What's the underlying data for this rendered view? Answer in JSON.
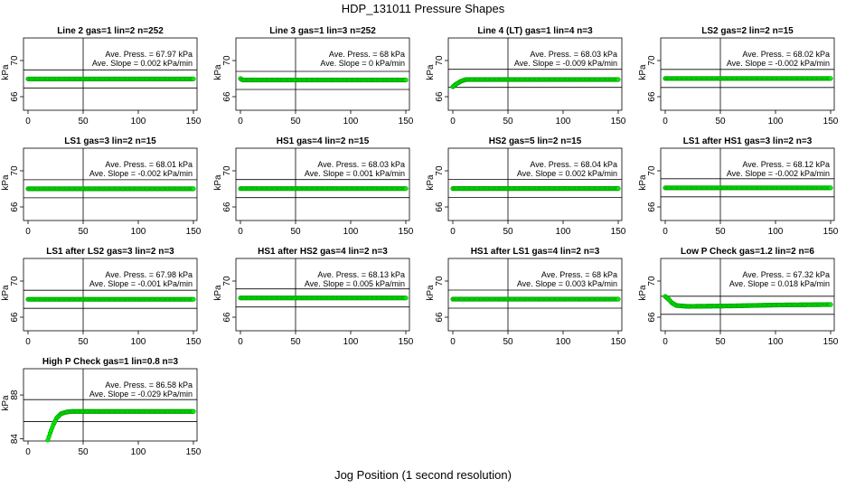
{
  "title": "HDP_131011  Pressure Shapes",
  "xlabel": "Jog Position (1 second resolution)",
  "colors": {
    "points": "#00ee00",
    "point_edge": "#009900",
    "lines": "#000000"
  },
  "chart_data": [
    {
      "type": "scatter",
      "title": "Line 2 gas=1 lin=2 n=252",
      "ylabel": "kPa",
      "x_ticks": [
        "0",
        "50",
        "100",
        "150"
      ],
      "y_ticks": [
        "66",
        "70"
      ],
      "xlim": [
        0,
        150
      ],
      "ylim": [
        64.5,
        72.5
      ],
      "vline": 50,
      "hlines": [
        66.97,
        68.97
      ],
      "stats": [
        "Ave. Press. = 67.97 kPa",
        "Ave. Slope = 0.002 kPa/min"
      ],
      "x": [
        0,
        150
      ],
      "y": [
        67.97,
        67.97
      ]
    },
    {
      "type": "scatter",
      "title": "Line 3 gas=1 lin=3 n=252",
      "ylabel": "kPa",
      "x_ticks": [
        "0",
        "50",
        "100",
        "150"
      ],
      "y_ticks": [
        "66",
        "70"
      ],
      "xlim": [
        0,
        150
      ],
      "ylim": [
        64.5,
        72.5
      ],
      "vline": 50,
      "hlines": [
        66.8,
        68.8
      ],
      "stats": [
        "Ave. Press. = 68 kPa",
        "Ave. Slope = 0 kPa/min"
      ],
      "x": [
        0,
        2,
        150
      ],
      "y": [
        68.0,
        67.85,
        67.85
      ]
    },
    {
      "type": "scatter",
      "title": "Line 4 (LT) gas=1 lin=4 n=3",
      "ylabel": "kPa",
      "x_ticks": [
        "0",
        "50",
        "100",
        "150"
      ],
      "y_ticks": [
        "66",
        "70"
      ],
      "xlim": [
        0,
        150
      ],
      "ylim": [
        64.5,
        72.5
      ],
      "vline": 50,
      "hlines": [
        67.03,
        69.03
      ],
      "stats": [
        "Ave. Press. = 68.03 kPa",
        "Ave. Slope = -0.009 kPa/min"
      ],
      "x": [
        0,
        3,
        8,
        12,
        150
      ],
      "y": [
        67.1,
        67.4,
        67.75,
        67.9,
        67.9
      ]
    },
    {
      "type": "scatter",
      "title": "LS2 gas=2 lin=2 n=15",
      "ylabel": "kPa",
      "x_ticks": [
        "0",
        "50",
        "100",
        "150"
      ],
      "y_ticks": [
        "66",
        "70"
      ],
      "xlim": [
        0,
        150
      ],
      "ylim": [
        64.5,
        72.5
      ],
      "vline": 50,
      "hlines": [
        67.02,
        69.02
      ],
      "stats": [
        "Ave. Press. = 68.02 kPa",
        "Ave. Slope = -0.002 kPa/min"
      ],
      "x": [
        0,
        150
      ],
      "y": [
        68.02,
        68.02
      ]
    },
    {
      "type": "scatter",
      "title": "LS1 gas=3 lin=2 n=15",
      "ylabel": "kPa",
      "x_ticks": [
        "0",
        "50",
        "100",
        "150"
      ],
      "y_ticks": [
        "66",
        "70"
      ],
      "xlim": [
        0,
        150
      ],
      "ylim": [
        64.5,
        72.5
      ],
      "vline": 50,
      "hlines": [
        67.01,
        69.01
      ],
      "stats": [
        "Ave. Press. = 68.01 kPa",
        "Ave. Slope = -0.002 kPa/min"
      ],
      "x": [
        0,
        150
      ],
      "y": [
        68.01,
        68.01
      ]
    },
    {
      "type": "scatter",
      "title": "HS1 gas=4 lin=2 n=15",
      "ylabel": "kPa",
      "x_ticks": [
        "0",
        "50",
        "100",
        "150"
      ],
      "y_ticks": [
        "66",
        "70"
      ],
      "xlim": [
        0,
        150
      ],
      "ylim": [
        64.5,
        72.5
      ],
      "vline": 50,
      "hlines": [
        67.03,
        69.03
      ],
      "stats": [
        "Ave. Press. = 68.03 kPa",
        "Ave. Slope = 0.001 kPa/min"
      ],
      "x": [
        0,
        150
      ],
      "y": [
        68.03,
        68.03
      ]
    },
    {
      "type": "scatter",
      "title": "HS2 gas=5 lin=2 n=15",
      "ylabel": "kPa",
      "x_ticks": [
        "0",
        "50",
        "100",
        "150"
      ],
      "y_ticks": [
        "66",
        "70"
      ],
      "xlim": [
        0,
        150
      ],
      "ylim": [
        64.5,
        72.5
      ],
      "vline": 50,
      "hlines": [
        67.04,
        69.04
      ],
      "stats": [
        "Ave. Press. = 68.04 kPa",
        "Ave. Slope = 0.002 kPa/min"
      ],
      "x": [
        0,
        150
      ],
      "y": [
        68.04,
        68.04
      ]
    },
    {
      "type": "scatter",
      "title": "LS1 after HS1 gas=3 lin=2 n=3",
      "ylabel": "kPa",
      "x_ticks": [
        "0",
        "50",
        "100",
        "150"
      ],
      "y_ticks": [
        "66",
        "70"
      ],
      "xlim": [
        0,
        150
      ],
      "ylim": [
        64.5,
        72.5
      ],
      "vline": 50,
      "hlines": [
        67.12,
        69.12
      ],
      "stats": [
        "Ave. Press. = 68.12 kPa",
        "Ave. Slope = -0.002 kPa/min"
      ],
      "x": [
        0,
        150
      ],
      "y": [
        68.12,
        68.12
      ]
    },
    {
      "type": "scatter",
      "title": "LS1 after LS2 gas=3 lin=2 n=3",
      "ylabel": "kPa",
      "x_ticks": [
        "0",
        "50",
        "100",
        "150"
      ],
      "y_ticks": [
        "66",
        "70"
      ],
      "xlim": [
        0,
        150
      ],
      "ylim": [
        64.5,
        72.5
      ],
      "vline": 50,
      "hlines": [
        66.98,
        68.98
      ],
      "stats": [
        "Ave. Press. = 67.98 kPa",
        "Ave. Slope = -0.001 kPa/min"
      ],
      "x": [
        0,
        150
      ],
      "y": [
        67.98,
        67.98
      ]
    },
    {
      "type": "scatter",
      "title": "HS1 after HS2 gas=4 lin=2 n=3",
      "ylabel": "kPa",
      "x_ticks": [
        "0",
        "50",
        "100",
        "150"
      ],
      "y_ticks": [
        "66",
        "70"
      ],
      "xlim": [
        0,
        150
      ],
      "ylim": [
        64.5,
        72.5
      ],
      "vline": 50,
      "hlines": [
        67.13,
        69.13
      ],
      "stats": [
        "Ave. Press. = 68.13 kPa",
        "Ave. Slope = 0.005 kPa/min"
      ],
      "x": [
        0,
        150
      ],
      "y": [
        68.13,
        68.13
      ]
    },
    {
      "type": "scatter",
      "title": "HS1 after LS1 gas=4 lin=2 n=3",
      "ylabel": "kPa",
      "x_ticks": [
        "0",
        "50",
        "100",
        "150"
      ],
      "y_ticks": [
        "66",
        "70"
      ],
      "xlim": [
        0,
        150
      ],
      "ylim": [
        64.5,
        72.5
      ],
      "vline": 50,
      "hlines": [
        67.0,
        69.0
      ],
      "stats": [
        "Ave. Press. = 68 kPa",
        "Ave. Slope = 0.003 kPa/min"
      ],
      "x": [
        0,
        150
      ],
      "y": [
        68.0,
        68.0
      ]
    },
    {
      "type": "scatter",
      "title": "Low P Check gas=1.2 lin=2 n=6",
      "ylabel": "kPa",
      "x_ticks": [
        "0",
        "50",
        "100",
        "150"
      ],
      "y_ticks": [
        "66",
        "70"
      ],
      "xlim": [
        0,
        150
      ],
      "ylim": [
        64.5,
        72.5
      ],
      "vline": 50,
      "hlines": [
        66.32,
        68.32
      ],
      "stats": [
        "Ave. Press. = 67.32 kPa",
        "Ave. Slope = 0.018 kPa/min"
      ],
      "x": [
        0,
        3,
        6,
        10,
        20,
        60,
        100,
        150
      ],
      "y": [
        68.3,
        68.0,
        67.6,
        67.3,
        67.2,
        67.25,
        67.35,
        67.4
      ]
    },
    {
      "type": "scatter",
      "title": "High P Check gas=1 lin=0.8 n=3",
      "ylabel": "kPa",
      "x_ticks": [
        "0",
        "50",
        "100",
        "150"
      ],
      "y_ticks": [
        "84",
        "88"
      ],
      "xlim": [
        0,
        150
      ],
      "ylim": [
        83.8,
        90.4
      ],
      "vline": 50,
      "hlines": [
        85.58,
        87.58
      ],
      "stats": [
        "Ave. Press. = 86.58 kPa",
        "Ave. Slope = -0.029 kPa/min"
      ],
      "x": [
        18,
        20,
        23,
        26,
        30,
        35,
        40,
        150
      ],
      "y": [
        83.9,
        84.5,
        85.3,
        85.9,
        86.3,
        86.45,
        86.5,
        86.5
      ]
    }
  ]
}
